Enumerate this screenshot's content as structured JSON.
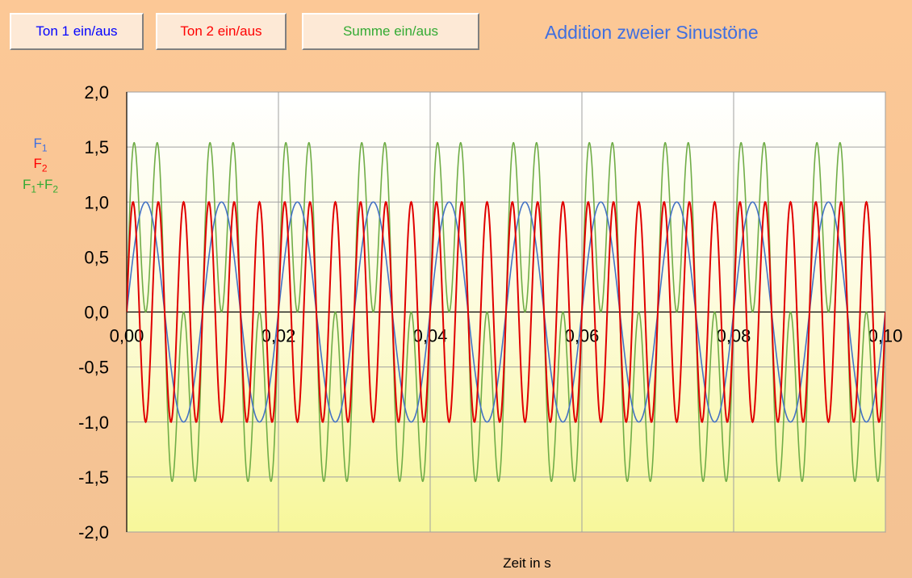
{
  "buttons": {
    "ton1": {
      "label": "Ton 1 ein/aus",
      "color": "#0000ff"
    },
    "ton2": {
      "label": "Ton 2 ein/aus",
      "color": "#ff0000"
    },
    "summe": {
      "label": "Summe ein/aus",
      "color": "#33aa33"
    }
  },
  "title": {
    "text": "Addition zweier Sinustöne",
    "color": "#3f6fe0"
  },
  "legend": [
    {
      "base": "F",
      "sub": "1",
      "color": "#3f6fe0"
    },
    {
      "base": "F",
      "sub": "2",
      "color": "#ff0000"
    },
    {
      "text": "F1+F2",
      "parts": [
        "F",
        "1",
        "+F",
        "2"
      ],
      "color": "#33aa33"
    }
  ],
  "chart_data": {
    "type": "line",
    "title": "Addition zweier Sinustöne",
    "xlabel": "Zeit in s",
    "ylabel": "",
    "xlim": [
      0,
      0.1
    ],
    "ylim": [
      -2,
      2
    ],
    "xticks": [
      "0,00",
      "0,02",
      "0,04",
      "0,06",
      "0,08",
      "0,10"
    ],
    "yticks": [
      "2,0",
      "1,5",
      "1,0",
      "0,5",
      "0,0",
      "-0,5",
      "-1,0",
      "-1,5",
      "-2,0"
    ],
    "grid": true,
    "series": [
      {
        "name": "F1",
        "formula": "sin(2*pi*100*t)",
        "frequency_hz": 100,
        "amplitude": 1,
        "color": "#4472c4"
      },
      {
        "name": "F2",
        "formula": "sin(2*pi*300*t)",
        "frequency_hz": 300,
        "amplitude": 1,
        "color": "#e00000"
      },
      {
        "name": "F1+F2",
        "formula": "sin(2*pi*100*t)+sin(2*pi*300*t)",
        "color": "#70ad47"
      }
    ]
  }
}
